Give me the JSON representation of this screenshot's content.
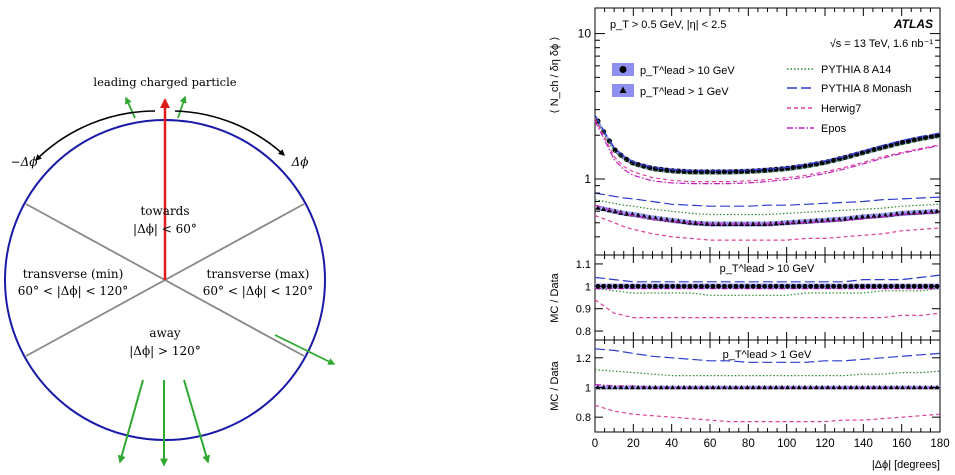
{
  "diagram": {
    "top_label": "leading charged particle",
    "left_angle": "−Δϕ",
    "right_angle": "Δϕ",
    "regions": {
      "towards": {
        "name": "towards",
        "condition": "|Δϕ| < 60°"
      },
      "trans_min": {
        "name": "transverse (min)",
        "condition": "60° < |Δϕ| < 120°"
      },
      "trans_max": {
        "name": "transverse (max)",
        "condition": "60° < |Δϕ| < 120°"
      },
      "away": {
        "name": "away",
        "condition": "|Δϕ| > 120°"
      }
    },
    "colors": {
      "circle": "#1a1aa8",
      "leading_arrow": "#e01b1b",
      "particle_arrow": "#2ea82e",
      "angle_arrow": "#000000",
      "divider": "#888888"
    }
  },
  "chart_data": [
    {
      "type": "line",
      "panel": "main",
      "ylabel": "⟨ N_ch / δη δϕ ⟩",
      "yscale": "log",
      "ylim": [
        0.3,
        15
      ],
      "xlim": [
        0,
        180
      ],
      "yticks": [
        "1",
        "10"
      ],
      "info_left": "p_T > 0.5 GeV, |η| < 2.5",
      "experiment": "ATLAS",
      "energy": "√s = 13 TeV, 1.6 nb⁻¹",
      "legend_data": [
        "p_T^lead > 10 GeV",
        "p_T^lead > 1 GeV"
      ],
      "legend_mc": [
        "PYTHIA 8 A14",
        "PYTHIA 8 Monash",
        "Herwig7",
        "Epos"
      ],
      "x": [
        0,
        5,
        10,
        15,
        20,
        30,
        40,
        50,
        60,
        70,
        80,
        90,
        100,
        110,
        120,
        130,
        140,
        150,
        160,
        170,
        180
      ],
      "series": [
        {
          "name": "p_T^lead > 10 GeV",
          "kind": "data_circle",
          "values": [
            2.7,
            2.05,
            1.6,
            1.4,
            1.28,
            1.18,
            1.14,
            1.12,
            1.12,
            1.12,
            1.13,
            1.15,
            1.18,
            1.23,
            1.3,
            1.4,
            1.52,
            1.65,
            1.78,
            1.9,
            2.0
          ]
        },
        {
          "name": "p_T^lead > 1 GeV",
          "kind": "data_triangle",
          "values": [
            0.64,
            0.62,
            0.6,
            0.58,
            0.57,
            0.54,
            0.52,
            0.5,
            0.49,
            0.49,
            0.49,
            0.49,
            0.5,
            0.51,
            0.52,
            0.53,
            0.55,
            0.56,
            0.58,
            0.59,
            0.6
          ]
        },
        {
          "name": "PYTHIA 8 A14",
          "kind": "a14_10",
          "values": [
            2.65,
            2.0,
            1.55,
            1.36,
            1.25,
            1.14,
            1.1,
            1.08,
            1.08,
            1.08,
            1.09,
            1.11,
            1.14,
            1.19,
            1.26,
            1.36,
            1.48,
            1.6,
            1.72,
            1.84,
            1.95
          ]
        },
        {
          "name": "PYTHIA 8 Monash",
          "kind": "monash_10",
          "values": [
            2.75,
            2.1,
            1.64,
            1.43,
            1.31,
            1.2,
            1.16,
            1.14,
            1.14,
            1.14,
            1.15,
            1.17,
            1.2,
            1.26,
            1.33,
            1.43,
            1.56,
            1.7,
            1.84,
            1.96,
            2.07
          ]
        },
        {
          "name": "Herwig7",
          "kind": "herwig_10",
          "values": [
            2.6,
            1.93,
            1.42,
            1.22,
            1.12,
            1.02,
            0.98,
            0.96,
            0.96,
            0.96,
            0.97,
            0.99,
            1.02,
            1.06,
            1.12,
            1.2,
            1.3,
            1.42,
            1.52,
            1.62,
            1.72
          ]
        },
        {
          "name": "Epos",
          "kind": "epos_10",
          "values": [
            2.5,
            1.85,
            1.36,
            1.16,
            1.06,
            0.97,
            0.94,
            0.93,
            0.93,
            0.93,
            0.94,
            0.96,
            0.99,
            1.03,
            1.09,
            1.17,
            1.27,
            1.39,
            1.5,
            1.6,
            1.7
          ]
        },
        {
          "name": "PYTHIA 8 A14",
          "kind": "a14_1",
          "values": [
            0.72,
            0.7,
            0.68,
            0.66,
            0.65,
            0.62,
            0.6,
            0.58,
            0.57,
            0.57,
            0.57,
            0.57,
            0.58,
            0.59,
            0.6,
            0.61,
            0.62,
            0.63,
            0.65,
            0.66,
            0.67
          ]
        },
        {
          "name": "PYTHIA 8 Monash",
          "kind": "monash_1",
          "values": [
            0.8,
            0.78,
            0.76,
            0.74,
            0.73,
            0.7,
            0.67,
            0.66,
            0.65,
            0.65,
            0.65,
            0.66,
            0.66,
            0.67,
            0.68,
            0.69,
            0.7,
            0.72,
            0.73,
            0.74,
            0.75
          ]
        },
        {
          "name": "Herwig7",
          "kind": "herwig_1",
          "values": [
            0.56,
            0.53,
            0.5,
            0.47,
            0.45,
            0.42,
            0.4,
            0.39,
            0.38,
            0.38,
            0.38,
            0.38,
            0.38,
            0.39,
            0.39,
            0.4,
            0.41,
            0.42,
            0.44,
            0.45,
            0.46
          ]
        },
        {
          "name": "Epos",
          "kind": "epos_1",
          "values": [
            0.66,
            0.63,
            0.6,
            0.58,
            0.56,
            0.53,
            0.51,
            0.5,
            0.49,
            0.49,
            0.49,
            0.49,
            0.5,
            0.5,
            0.51,
            0.52,
            0.53,
            0.55,
            0.57,
            0.58,
            0.59
          ]
        }
      ]
    },
    {
      "type": "line",
      "panel": "ratio_10",
      "title": "p_T^lead > 10 GeV",
      "ylabel": "MC / Data",
      "ylim": [
        0.76,
        1.14
      ],
      "yticks": [
        "0.8",
        "0.9",
        "1",
        "1.1"
      ],
      "x": [
        0,
        10,
        20,
        30,
        40,
        50,
        60,
        70,
        80,
        90,
        100,
        110,
        120,
        130,
        140,
        150,
        160,
        170,
        180
      ],
      "series": [
        {
          "name": "PYTHIA 8 A14",
          "values": [
            0.99,
            0.98,
            0.97,
            0.97,
            0.97,
            0.97,
            0.96,
            0.96,
            0.96,
            0.96,
            0.96,
            0.97,
            0.97,
            0.97,
            0.97,
            0.98,
            0.98,
            0.98,
            0.99
          ]
        },
        {
          "name": "PYTHIA 8 Monash",
          "values": [
            1.04,
            1.03,
            1.02,
            1.02,
            1.02,
            1.02,
            1.02,
            1.02,
            1.02,
            1.02,
            1.02,
            1.02,
            1.02,
            1.02,
            1.03,
            1.03,
            1.03,
            1.04,
            1.05
          ]
        },
        {
          "name": "Herwig7",
          "values": [
            0.94,
            0.88,
            0.86,
            0.86,
            0.86,
            0.86,
            0.86,
            0.86,
            0.86,
            0.86,
            0.86,
            0.86,
            0.86,
            0.86,
            0.86,
            0.86,
            0.87,
            0.87,
            0.88
          ]
        },
        {
          "name": "Epos",
          "values": [
            0.99,
            0.99,
            0.99,
            0.99,
            0.99,
            0.99,
            0.99,
            0.99,
            0.99,
            0.99,
            0.99,
            0.99,
            0.99,
            0.99,
            0.99,
            0.99,
            0.99,
            0.99,
            0.99
          ]
        }
      ]
    },
    {
      "type": "line",
      "panel": "ratio_1",
      "title": "p_T^lead > 1 GeV",
      "ylabel": "MC / Data",
      "xlabel": "|Δϕ| [degrees]",
      "ylim": [
        0.7,
        1.32
      ],
      "yticks": [
        "0.8",
        "1",
        "1.2"
      ],
      "xticks": [
        "0",
        "20",
        "40",
        "60",
        "80",
        "100",
        "120",
        "140",
        "160",
        "180"
      ],
      "x": [
        0,
        10,
        20,
        30,
        40,
        50,
        60,
        70,
        80,
        90,
        100,
        110,
        120,
        130,
        140,
        150,
        160,
        170,
        180
      ],
      "series": [
        {
          "name": "PYTHIA 8 A14",
          "values": [
            1.12,
            1.11,
            1.1,
            1.09,
            1.08,
            1.08,
            1.08,
            1.08,
            1.08,
            1.08,
            1.08,
            1.08,
            1.08,
            1.08,
            1.09,
            1.09,
            1.1,
            1.1,
            1.11
          ]
        },
        {
          "name": "PYTHIA 8 Monash",
          "values": [
            1.26,
            1.25,
            1.23,
            1.21,
            1.2,
            1.19,
            1.18,
            1.18,
            1.17,
            1.17,
            1.17,
            1.17,
            1.18,
            1.18,
            1.19,
            1.2,
            1.21,
            1.22,
            1.23
          ]
        },
        {
          "name": "Herwig7",
          "values": [
            0.88,
            0.84,
            0.82,
            0.81,
            0.8,
            0.79,
            0.78,
            0.77,
            0.77,
            0.77,
            0.77,
            0.77,
            0.77,
            0.78,
            0.78,
            0.79,
            0.8,
            0.81,
            0.82
          ]
        },
        {
          "name": "Epos",
          "values": [
            1.02,
            1.01,
            1.01,
            1.0,
            1.0,
            1.0,
            1.0,
            1.0,
            1.0,
            1.0,
            1.0,
            1.0,
            1.0,
            1.0,
            1.0,
            1.0,
            1.0,
            1.0,
            1.0
          ]
        }
      ]
    }
  ]
}
